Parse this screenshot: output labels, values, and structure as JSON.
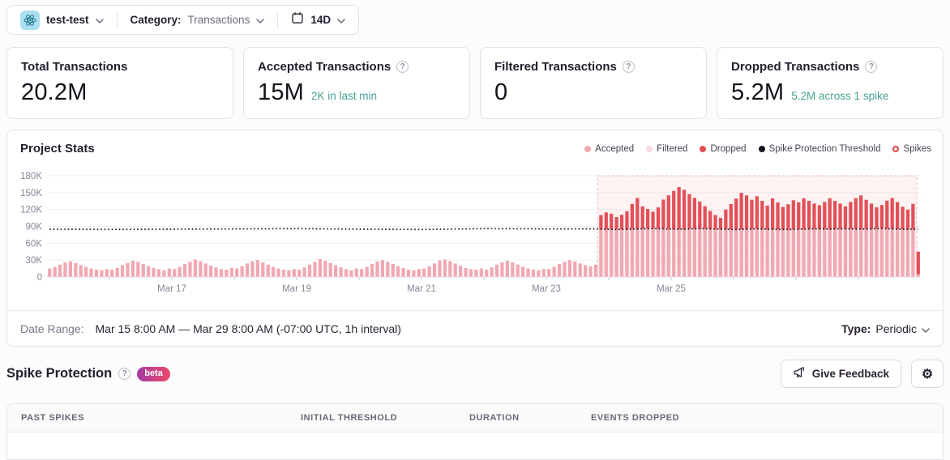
{
  "icons": {
    "help": "?",
    "gear": "⚙"
  },
  "colors": {
    "accent_teal": "#47a193",
    "accepted_pink": "#f1a8b2",
    "filtered_pink": "#f8dce2",
    "dropped_red": "#e25058",
    "threshold_black": "#19141f",
    "spikes_ring": "#e1424d"
  },
  "top_bar": {
    "project_name": "test-test",
    "project_platform_icon": "react-atom-icon",
    "category_label": "Category:",
    "category_value": "Transactions",
    "date_range_value": "14D"
  },
  "stat_cards": [
    {
      "label": "Total Transactions",
      "value": "20.2M",
      "sub": ""
    },
    {
      "label": "Accepted Transactions",
      "value": "15M",
      "sub": "2K in last min"
    },
    {
      "label": "Filtered Transactions",
      "value": "0",
      "sub": ""
    },
    {
      "label": "Dropped Transactions",
      "value": "5.2M",
      "sub": "5.2M across 1 spike"
    }
  ],
  "chart": {
    "title": "Project Stats",
    "legend": [
      {
        "label": "Accepted",
        "color": "#f1a8b2",
        "shape": "dot"
      },
      {
        "label": "Filtered",
        "color": "#f8dce2",
        "shape": "dot"
      },
      {
        "label": "Dropped",
        "color": "#e25058",
        "shape": "dot"
      },
      {
        "label": "Spike Protection Threshold",
        "color": "#19141f",
        "shape": "dot"
      },
      {
        "label": "Spikes",
        "color": "#e1424d",
        "shape": "ring"
      }
    ]
  },
  "chart_data": {
    "type": "bar",
    "stacked": true,
    "title": "Project Stats",
    "x_start": "Mar 15 8:00 AM",
    "x_end": "Mar 29 8:00 AM",
    "total_days": 14,
    "x_tick_labels": [
      "Mar 17",
      "Mar 19",
      "Mar 21",
      "Mar 23",
      "Mar 25"
    ],
    "x_tick_day_fracs": [
      2,
      4,
      6,
      8,
      10
    ],
    "y_ticks": [
      "180K",
      "150K",
      "120K",
      "90K",
      "60K",
      "30K",
      "0"
    ],
    "y_max_thousands": 180,
    "units": "thousands of transactions per interval",
    "series": [
      {
        "name": "Accepted",
        "color": "#f1a8b2",
        "values": [
          15,
          18,
          22,
          26,
          28,
          25,
          21,
          18,
          15,
          13,
          12,
          14,
          13,
          16,
          21,
          25,
          29,
          27,
          23,
          19,
          16,
          14,
          12,
          15,
          14,
          18,
          23,
          27,
          31,
          28,
          24,
          20,
          17,
          14,
          13,
          16,
          15,
          19,
          24,
          28,
          30,
          26,
          22,
          18,
          15,
          13,
          12,
          14,
          13,
          17,
          22,
          27,
          32,
          29,
          25,
          21,
          17,
          14,
          12,
          15,
          14,
          18,
          23,
          28,
          30,
          27,
          23,
          19,
          16,
          13,
          12,
          14,
          15,
          19,
          24,
          29,
          31,
          28,
          24,
          20,
          16,
          14,
          13,
          15,
          13,
          17,
          22,
          26,
          29,
          26,
          22,
          18,
          15,
          13,
          12,
          14,
          14,
          18,
          23,
          27,
          30,
          28,
          24,
          21,
          19,
          22,
          85,
          84.8,
          84.6,
          84.5,
          84.6,
          84.8,
          85,
          85.3,
          85.6,
          85.8,
          86,
          85.8,
          85.6,
          85.3,
          85,
          84.9,
          85.1,
          85.4,
          85.7,
          86,
          85.8,
          85.5,
          85.2,
          85,
          84.8,
          84.6,
          84.5,
          84.7,
          85,
          85.3,
          85.5,
          85.3,
          85,
          84.8,
          84.6,
          84.4,
          84.3,
          84.5,
          84.8,
          85.1,
          85.4,
          85.6,
          85.5,
          85.3,
          85.1,
          85.3,
          85.5,
          85.6,
          85.4,
          85.2,
          85,
          85.2,
          85.5,
          85.8,
          86,
          85.7,
          85.4,
          85.1,
          84.9,
          84.7,
          85,
          5
        ]
      },
      {
        "name": "Dropped",
        "color": "#e25058",
        "start_index": 106,
        "values": [
          25,
          30,
          28,
          22,
          26,
          32,
          45,
          55,
          40,
          35,
          30,
          38,
          52,
          60,
          68,
          75,
          70,
          62,
          55,
          48,
          40,
          32,
          25,
          20,
          35,
          45,
          55,
          65,
          60,
          52,
          58,
          50,
          42,
          55,
          48,
          40,
          45,
          52,
          48,
          55,
          50,
          45,
          42,
          48,
          55,
          50,
          45,
          40,
          48,
          55,
          60,
          52,
          45,
          38,
          42,
          50,
          55,
          48,
          40,
          35,
          45,
          40
        ]
      },
      {
        "name": "Filtered",
        "color": "#f8dce2",
        "values_constant": 0
      }
    ],
    "threshold": {
      "name": "Spike Protection Threshold",
      "color": "#19141f",
      "pre_spike_daily": [
        85,
        84.5,
        85,
        85.5,
        86,
        85,
        84.5,
        86,
        85.5
      ]
    },
    "spike_region": {
      "label": "Spikes",
      "start_index": 106,
      "fill": "rgba(226,80,88,0.07)",
      "border": "#f3b7bc"
    }
  },
  "footer": {
    "date_range_label": "Date Range:",
    "date_range_value": "Mar 15 8:00 AM — Mar 29 8:00 AM (-07:00 UTC, 1h interval)",
    "type_label": "Type:",
    "type_value": "Periodic"
  },
  "spike_section": {
    "title": "Spike Protection",
    "badge": "beta",
    "feedback_button": "Give Feedback"
  },
  "table": {
    "headers": [
      "PAST SPIKES",
      "INITIAL THRESHOLD",
      "DURATION",
      "EVENTS DROPPED"
    ]
  }
}
